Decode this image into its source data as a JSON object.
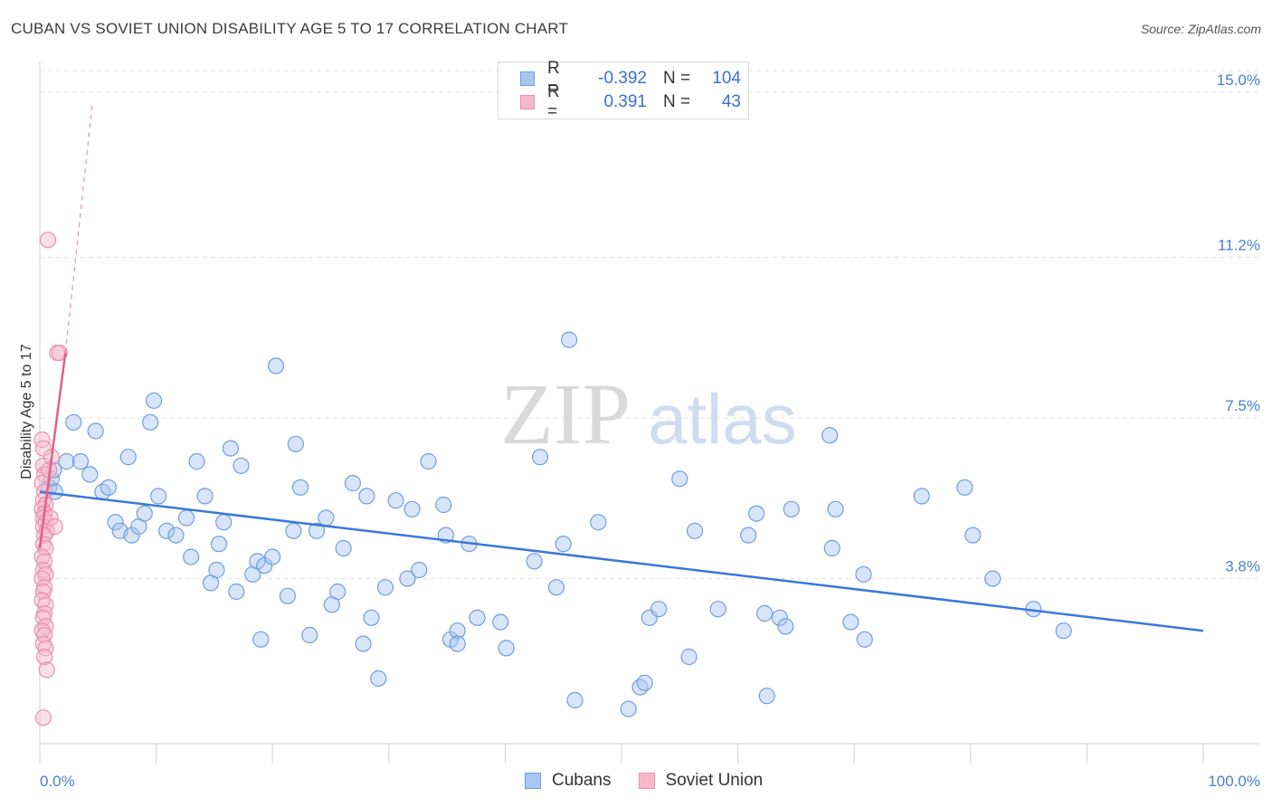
{
  "header": {
    "title": "CUBAN VS SOVIET UNION DISABILITY AGE 5 TO 17 CORRELATION CHART",
    "source": "Source: ZipAtlas.com"
  },
  "watermark": {
    "part1": "ZIP",
    "part2": "atlas"
  },
  "legend": {
    "rows": [
      {
        "r_label": "R =",
        "r_value": "-0.392",
        "n_label": "N =",
        "n_value": "104",
        "color": "#a8c6f0",
        "border": "#6f9de0"
      },
      {
        "r_label": "R =",
        "r_value": "0.391",
        "n_label": "N =",
        "n_value": "43",
        "color": "#f7b8cb",
        "border": "#e890aa"
      }
    ]
  },
  "bottom_legend": [
    {
      "label": "Cubans",
      "color": "#a8c6f0",
      "border": "#6f9de0"
    },
    {
      "label": "Soviet Union",
      "color": "#f7b8cb",
      "border": "#e890aa"
    }
  ],
  "chart_data": {
    "type": "scatter",
    "title": "CUBAN VS SOVIET UNION DISABILITY AGE 5 TO 17 CORRELATION CHART",
    "xlabel": "",
    "ylabel": "Disability Age 5 to 17",
    "xlim": [
      0,
      100
    ],
    "ylim": [
      0,
      15.5
    ],
    "y_ticks": [
      {
        "value": 3.8,
        "label": "3.8%"
      },
      {
        "value": 7.5,
        "label": "7.5%"
      },
      {
        "value": 11.2,
        "label": "11.2%"
      },
      {
        "value": 15.0,
        "label": "15.0%"
      }
    ],
    "x_tick_labels": [
      {
        "value": 0,
        "label": "0.0%"
      },
      {
        "value": 100,
        "label": "100.0%"
      }
    ],
    "x_minor_ticks": [
      0,
      10,
      20,
      30,
      40,
      50,
      60,
      70,
      80,
      90,
      100
    ],
    "grid": "horizontal dashed",
    "series": [
      {
        "name": "Cubans",
        "color": "#a8c6f0",
        "stroke": "#6f9de0",
        "trend": {
          "x": [
            0,
            100
          ],
          "y": [
            5.8,
            2.6
          ],
          "color": "#3a78d8"
        },
        "points": [
          [
            0.8,
            5.9
          ],
          [
            1.0,
            6.1
          ],
          [
            1.2,
            6.3
          ],
          [
            1.3,
            5.8
          ],
          [
            2.3,
            6.5
          ],
          [
            2.9,
            7.4
          ],
          [
            3.5,
            6.5
          ],
          [
            4.3,
            6.2
          ],
          [
            4.8,
            7.2
          ],
          [
            5.4,
            5.8
          ],
          [
            5.9,
            5.9
          ],
          [
            6.5,
            5.1
          ],
          [
            6.9,
            4.9
          ],
          [
            7.6,
            6.6
          ],
          [
            7.9,
            4.8
          ],
          [
            8.5,
            5.0
          ],
          [
            9.0,
            5.3
          ],
          [
            9.5,
            7.4
          ],
          [
            9.8,
            7.9
          ],
          [
            10.2,
            5.7
          ],
          [
            10.9,
            4.9
          ],
          [
            11.7,
            4.8
          ],
          [
            12.6,
            5.2
          ],
          [
            13.0,
            4.3
          ],
          [
            13.5,
            6.5
          ],
          [
            14.2,
            5.7
          ],
          [
            14.7,
            3.7
          ],
          [
            15.2,
            4.0
          ],
          [
            15.4,
            4.6
          ],
          [
            15.8,
            5.1
          ],
          [
            16.4,
            6.8
          ],
          [
            16.9,
            3.5
          ],
          [
            17.3,
            6.4
          ],
          [
            18.3,
            3.9
          ],
          [
            18.7,
            4.2
          ],
          [
            19.0,
            2.4
          ],
          [
            19.3,
            4.1
          ],
          [
            20.0,
            4.3
          ],
          [
            20.3,
            8.7
          ],
          [
            21.3,
            3.4
          ],
          [
            21.8,
            4.9
          ],
          [
            22.0,
            6.9
          ],
          [
            22.4,
            5.9
          ],
          [
            23.2,
            2.5
          ],
          [
            23.8,
            4.9
          ],
          [
            24.6,
            5.2
          ],
          [
            25.1,
            3.2
          ],
          [
            25.6,
            3.5
          ],
          [
            26.1,
            4.5
          ],
          [
            26.9,
            6.0
          ],
          [
            27.8,
            2.3
          ],
          [
            28.1,
            5.7
          ],
          [
            28.5,
            2.9
          ],
          [
            29.1,
            1.5
          ],
          [
            29.7,
            3.6
          ],
          [
            30.6,
            5.6
          ],
          [
            31.6,
            3.8
          ],
          [
            32.0,
            5.4
          ],
          [
            32.6,
            4.0
          ],
          [
            33.4,
            6.5
          ],
          [
            34.7,
            5.5
          ],
          [
            34.9,
            4.8
          ],
          [
            35.3,
            2.4
          ],
          [
            35.9,
            2.6
          ],
          [
            35.9,
            2.3
          ],
          [
            36.9,
            4.6
          ],
          [
            37.6,
            2.9
          ],
          [
            39.6,
            2.8
          ],
          [
            40.1,
            2.2
          ],
          [
            42.5,
            4.2
          ],
          [
            43.0,
            6.6
          ],
          [
            44.4,
            3.6
          ],
          [
            45.0,
            4.6
          ],
          [
            45.5,
            9.3
          ],
          [
            46.0,
            1.0
          ],
          [
            48.0,
            5.1
          ],
          [
            50.6,
            0.8
          ],
          [
            51.6,
            1.3
          ],
          [
            52.0,
            1.4
          ],
          [
            52.4,
            2.9
          ],
          [
            53.2,
            3.1
          ],
          [
            55.0,
            6.1
          ],
          [
            55.8,
            2.0
          ],
          [
            56.3,
            4.9
          ],
          [
            58.3,
            3.1
          ],
          [
            60.9,
            4.8
          ],
          [
            61.6,
            5.3
          ],
          [
            62.3,
            3.0
          ],
          [
            62.5,
            1.1
          ],
          [
            63.6,
            2.9
          ],
          [
            64.1,
            2.7
          ],
          [
            64.6,
            5.4
          ],
          [
            67.9,
            7.1
          ],
          [
            68.1,
            4.5
          ],
          [
            68.4,
            5.4
          ],
          [
            69.7,
            2.8
          ],
          [
            70.8,
            3.9
          ],
          [
            70.9,
            2.4
          ],
          [
            75.8,
            5.7
          ],
          [
            79.5,
            5.9
          ],
          [
            80.2,
            4.8
          ],
          [
            81.9,
            3.8
          ],
          [
            85.4,
            3.1
          ],
          [
            88.0,
            2.6
          ]
        ]
      },
      {
        "name": "Soviet Union",
        "color": "#f7b8cb",
        "stroke": "#e890aa",
        "trend": {
          "x": [
            0,
            2.2
          ],
          "y": [
            4.5,
            9.0
          ],
          "color": "#e0608a"
        },
        "trend_extension": {
          "x": [
            2.2,
            4.5
          ],
          "y": [
            9.0,
            14.7
          ]
        },
        "points": [
          [
            0.2,
            7.0
          ],
          [
            0.3,
            6.8
          ],
          [
            0.3,
            6.4
          ],
          [
            0.4,
            6.2
          ],
          [
            0.2,
            6.0
          ],
          [
            0.4,
            5.8
          ],
          [
            0.3,
            5.6
          ],
          [
            0.5,
            5.5
          ],
          [
            0.2,
            5.4
          ],
          [
            0.4,
            5.3
          ],
          [
            0.3,
            5.2
          ],
          [
            0.5,
            5.1
          ],
          [
            0.3,
            5.0
          ],
          [
            0.6,
            4.9
          ],
          [
            0.4,
            4.8
          ],
          [
            0.3,
            4.6
          ],
          [
            0.5,
            4.5
          ],
          [
            0.2,
            4.3
          ],
          [
            0.4,
            4.2
          ],
          [
            0.3,
            4.0
          ],
          [
            0.5,
            3.9
          ],
          [
            0.2,
            3.8
          ],
          [
            0.4,
            3.6
          ],
          [
            0.3,
            3.5
          ],
          [
            0.2,
            3.3
          ],
          [
            0.5,
            3.2
          ],
          [
            0.4,
            3.0
          ],
          [
            0.3,
            2.9
          ],
          [
            0.5,
            2.7
          ],
          [
            0.2,
            2.6
          ],
          [
            0.4,
            2.5
          ],
          [
            0.3,
            2.3
          ],
          [
            0.5,
            2.2
          ],
          [
            0.4,
            2.0
          ],
          [
            0.6,
            1.7
          ],
          [
            0.3,
            0.6
          ],
          [
            0.7,
            11.6
          ],
          [
            1.5,
            9.0
          ],
          [
            1.7,
            9.0
          ],
          [
            1.0,
            6.6
          ],
          [
            0.9,
            5.2
          ],
          [
            1.3,
            5.0
          ],
          [
            0.8,
            6.3
          ]
        ]
      }
    ]
  }
}
